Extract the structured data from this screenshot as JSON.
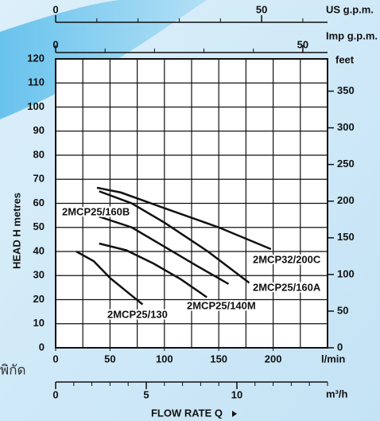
{
  "chart_data": {
    "type": "line",
    "y_label": "HEAD H metres",
    "x_label": "FLOW RATE Q",
    "side_label": "พิกัด",
    "x_unit": "l/min",
    "xlim": [
      0,
      250
    ],
    "xticks": [
      0,
      50,
      100,
      150,
      200
    ],
    "x_gridlines": [
      0,
      25,
      50,
      75,
      100,
      125,
      150,
      175,
      200,
      225,
      250
    ],
    "ylim": [
      0,
      120
    ],
    "yticks": [
      0,
      10,
      20,
      30,
      40,
      50,
      60,
      70,
      80,
      90,
      100,
      110,
      120
    ],
    "y2_unit": "feet",
    "y2lim": [
      0,
      394
    ],
    "y2ticks": [
      0,
      50,
      100,
      150,
      200,
      250,
      300,
      350
    ],
    "us_gpm": {
      "unit": "US g.p.m.",
      "lim": [
        0,
        66
      ],
      "ticks": [
        0,
        50
      ],
      "minor_ticks": [
        10,
        20,
        30,
        40,
        60
      ]
    },
    "imp_gpm": {
      "unit": "Imp g.p.m.",
      "lim": [
        0,
        55
      ],
      "ticks": [
        0,
        50
      ],
      "minor_ticks": [
        10,
        20,
        30,
        40
      ]
    },
    "m3h": {
      "unit": "m³/h",
      "lim": [
        0,
        15
      ],
      "ticks": [
        0,
        5,
        10
      ],
      "minor_ticks": [
        1,
        2,
        3,
        4,
        6,
        7,
        8,
        9,
        11,
        12,
        13,
        14,
        15
      ]
    },
    "color": "#111111",
    "series": [
      {
        "name": "2MCP32/200C",
        "x": [
          38,
          60,
          100,
          150,
          198
        ],
        "values": [
          66.5,
          64.5,
          58,
          50,
          41
        ]
      },
      {
        "name": "2MCP25/160A",
        "x": [
          40,
          70,
          100,
          140,
          178
        ],
        "values": [
          65,
          60,
          52,
          40,
          27
        ]
      },
      {
        "name": "2MCP25/160B",
        "x": [
          40,
          70,
          100,
          130,
          159
        ],
        "values": [
          54.5,
          50,
          42,
          34,
          26.5
        ]
      },
      {
        "name": "2MCP25/140M",
        "x": [
          40,
          65,
          90,
          115,
          139
        ],
        "values": [
          43.3,
          40.5,
          35,
          28.5,
          21
        ]
      },
      {
        "name": "2MCP25/130",
        "x": [
          19,
          35,
          50,
          65,
          80
        ],
        "values": [
          40,
          36,
          29,
          23.5,
          18
        ]
      }
    ]
  }
}
